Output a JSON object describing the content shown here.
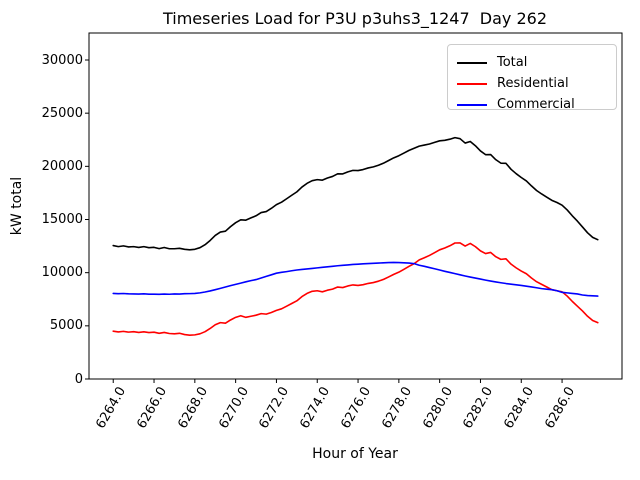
{
  "figure": {
    "title": "Timeseries Load for P3U p3uhs3_1247  Day 262",
    "xlabel": "Hour of Year",
    "ylabel": "kW total"
  },
  "chart_data": {
    "type": "line",
    "title": "Timeseries Load for P3U p3uhs3_1247  Day 262",
    "xlabel": "Hour of Year",
    "ylabel": "kW total",
    "grid": false,
    "legend_position": "upper right",
    "x_start": 6264.0,
    "x_step": 0.25,
    "x_end": 6287.75,
    "n_points": 96,
    "xlim": [
      6262.8125,
      6288.9375
    ],
    "ylim": [
      0,
      32540
    ],
    "x_tick_labels": [
      "6264.0",
      "6266.0",
      "6268.0",
      "6270.0",
      "6272.0",
      "6274.0",
      "6276.0",
      "6278.0",
      "6280.0",
      "6282.0",
      "6284.0",
      "6286.0"
    ],
    "x_tick_values": [
      6264,
      6266,
      6268,
      6270,
      6272,
      6274,
      6276,
      6278,
      6280,
      6282,
      6284,
      6286
    ],
    "y_tick_labels": [
      "0",
      "5000",
      "10000",
      "15000",
      "20000",
      "25000",
      "30000"
    ],
    "y_tick_values": [
      0,
      5000,
      10000,
      15000,
      20000,
      25000,
      30000
    ],
    "series": [
      {
        "name": "Total",
        "color": "#000000",
        "note": "sum of Residential and Commercial",
        "values": [
          12550,
          12450,
          12520,
          12420,
          12450,
          12370,
          12450,
          12350,
          12380,
          12260,
          12370,
          12250,
          12250,
          12290,
          12200,
          12150,
          12200,
          12350,
          12630,
          13030,
          13500,
          13820,
          13900,
          14330,
          14700,
          14970,
          14940,
          15150,
          15350,
          15650,
          15750,
          16050,
          16400,
          16630,
          16950,
          17280,
          17600,
          18050,
          18400,
          18650,
          18750,
          18700,
          18900,
          19050,
          19300,
          19290,
          19480,
          19620,
          19600,
          19700,
          19850,
          19950,
          20100,
          20300,
          20550,
          20800,
          21000,
          21250,
          21500,
          21700,
          21900,
          22000,
          22100,
          22250,
          22400,
          22450,
          22550,
          22700,
          22600,
          22190,
          22340,
          21940,
          21450,
          21100,
          21110,
          20630,
          20300,
          20280,
          19720,
          19310,
          18950,
          18630,
          18160,
          17730,
          17400,
          17100,
          16800,
          16600,
          16350,
          15900,
          15350,
          14850,
          14300,
          13750,
          13320,
          13100
        ]
      },
      {
        "name": "Residential",
        "color": "#ff0000",
        "values": [
          4500,
          4430,
          4480,
          4410,
          4450,
          4380,
          4440,
          4370,
          4400,
          4300,
          4380,
          4280,
          4250,
          4300,
          4180,
          4120,
          4150,
          4250,
          4450,
          4750,
          5100,
          5300,
          5250,
          5550,
          5800,
          5950,
          5800,
          5900,
          6000,
          6150,
          6100,
          6250,
          6450,
          6600,
          6850,
          7100,
          7350,
          7750,
          8050,
          8250,
          8300,
          8200,
          8350,
          8450,
          8650,
          8600,
          8750,
          8850,
          8800,
          8870,
          8990,
          9070,
          9200,
          9370,
          9600,
          9840,
          10050,
          10320,
          10600,
          10850,
          11200,
          11400,
          11620,
          11880,
          12150,
          12320,
          12530,
          12790,
          12800,
          12500,
          12750,
          12450,
          12050,
          11800,
          11900,
          11500,
          11250,
          11300,
          10800,
          10450,
          10150,
          9900,
          9500,
          9150,
          8900,
          8650,
          8400,
          8300,
          8200,
          7800,
          7300,
          6850,
          6400,
          5900,
          5500,
          5300
        ]
      },
      {
        "name": "Commercial",
        "color": "#0000ff",
        "values": [
          8050,
          8020,
          8040,
          8010,
          8000,
          7990,
          8010,
          7980,
          7980,
          7960,
          7990,
          7970,
          8000,
          7990,
          8020,
          8030,
          8050,
          8100,
          8180,
          8280,
          8400,
          8520,
          8650,
          8780,
          8900,
          9020,
          9140,
          9250,
          9350,
          9500,
          9650,
          9800,
          9950,
          10030,
          10100,
          10180,
          10250,
          10300,
          10350,
          10400,
          10450,
          10500,
          10550,
          10600,
          10650,
          10690,
          10730,
          10770,
          10800,
          10830,
          10860,
          10880,
          10900,
          10930,
          10950,
          10960,
          10950,
          10930,
          10900,
          10850,
          10700,
          10600,
          10480,
          10370,
          10250,
          10130,
          10020,
          9910,
          9800,
          9690,
          9590,
          9490,
          9400,
          9300,
          9210,
          9130,
          9050,
          8980,
          8920,
          8860,
          8800,
          8730,
          8660,
          8580,
          8500,
          8450,
          8400,
          8300,
          8150,
          8100,
          8050,
          8000,
          7900,
          7850,
          7820,
          7800
        ]
      }
    ]
  }
}
